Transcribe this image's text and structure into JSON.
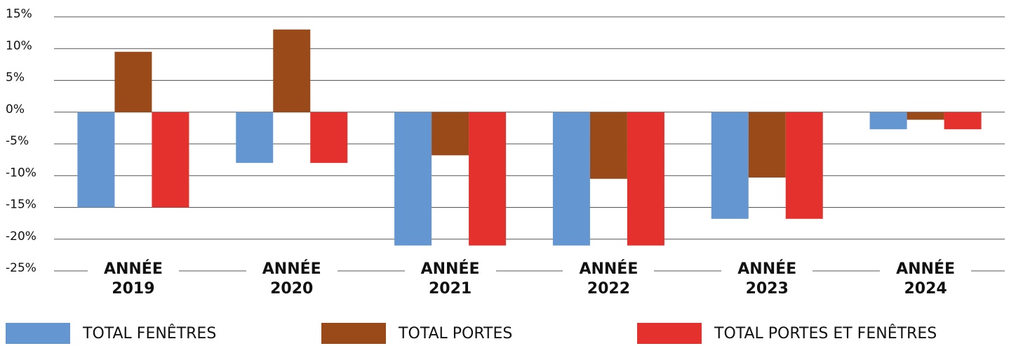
{
  "chart_data": {
    "type": "bar",
    "categories": [
      "ANNÉE 2019",
      "ANNÉE 2020",
      "ANNÉE 2021",
      "ANNÉE 2022",
      "ANNÉE 2023",
      "ANNÉE 2024"
    ],
    "series": [
      {
        "name": "TOTAL FENÊTRES",
        "color": "#6497d1",
        "values": [
          -15,
          -8,
          -21,
          -21,
          -16.8,
          -2.7
        ]
      },
      {
        "name": "TOTAL PORTES",
        "color": "#9a4a19",
        "values": [
          9.5,
          13,
          -6.8,
          -10.5,
          -10.3,
          -1.2
        ]
      },
      {
        "name": "TOTAL PORTES ET FENÊTRES",
        "color": "#e4312d",
        "values": [
          -15,
          -8,
          -21,
          -21,
          -16.8,
          -2.7
        ]
      }
    ],
    "ylim": [
      -25,
      15
    ],
    "yticks": [
      {
        "value": -25,
        "label": "-25%"
      },
      {
        "value": -20,
        "label": "-20%"
      },
      {
        "value": -15,
        "label": "-15%"
      },
      {
        "value": -10,
        "label": "-10%"
      },
      {
        "value": -5,
        "label": "-5%"
      },
      {
        "value": 0,
        "label": "0%"
      },
      {
        "value": 5,
        "label": "5%"
      },
      {
        "value": 10,
        "label": "10%"
      },
      {
        "value": 15,
        "label": "15%"
      }
    ],
    "grid": true,
    "legend": "bottom"
  }
}
